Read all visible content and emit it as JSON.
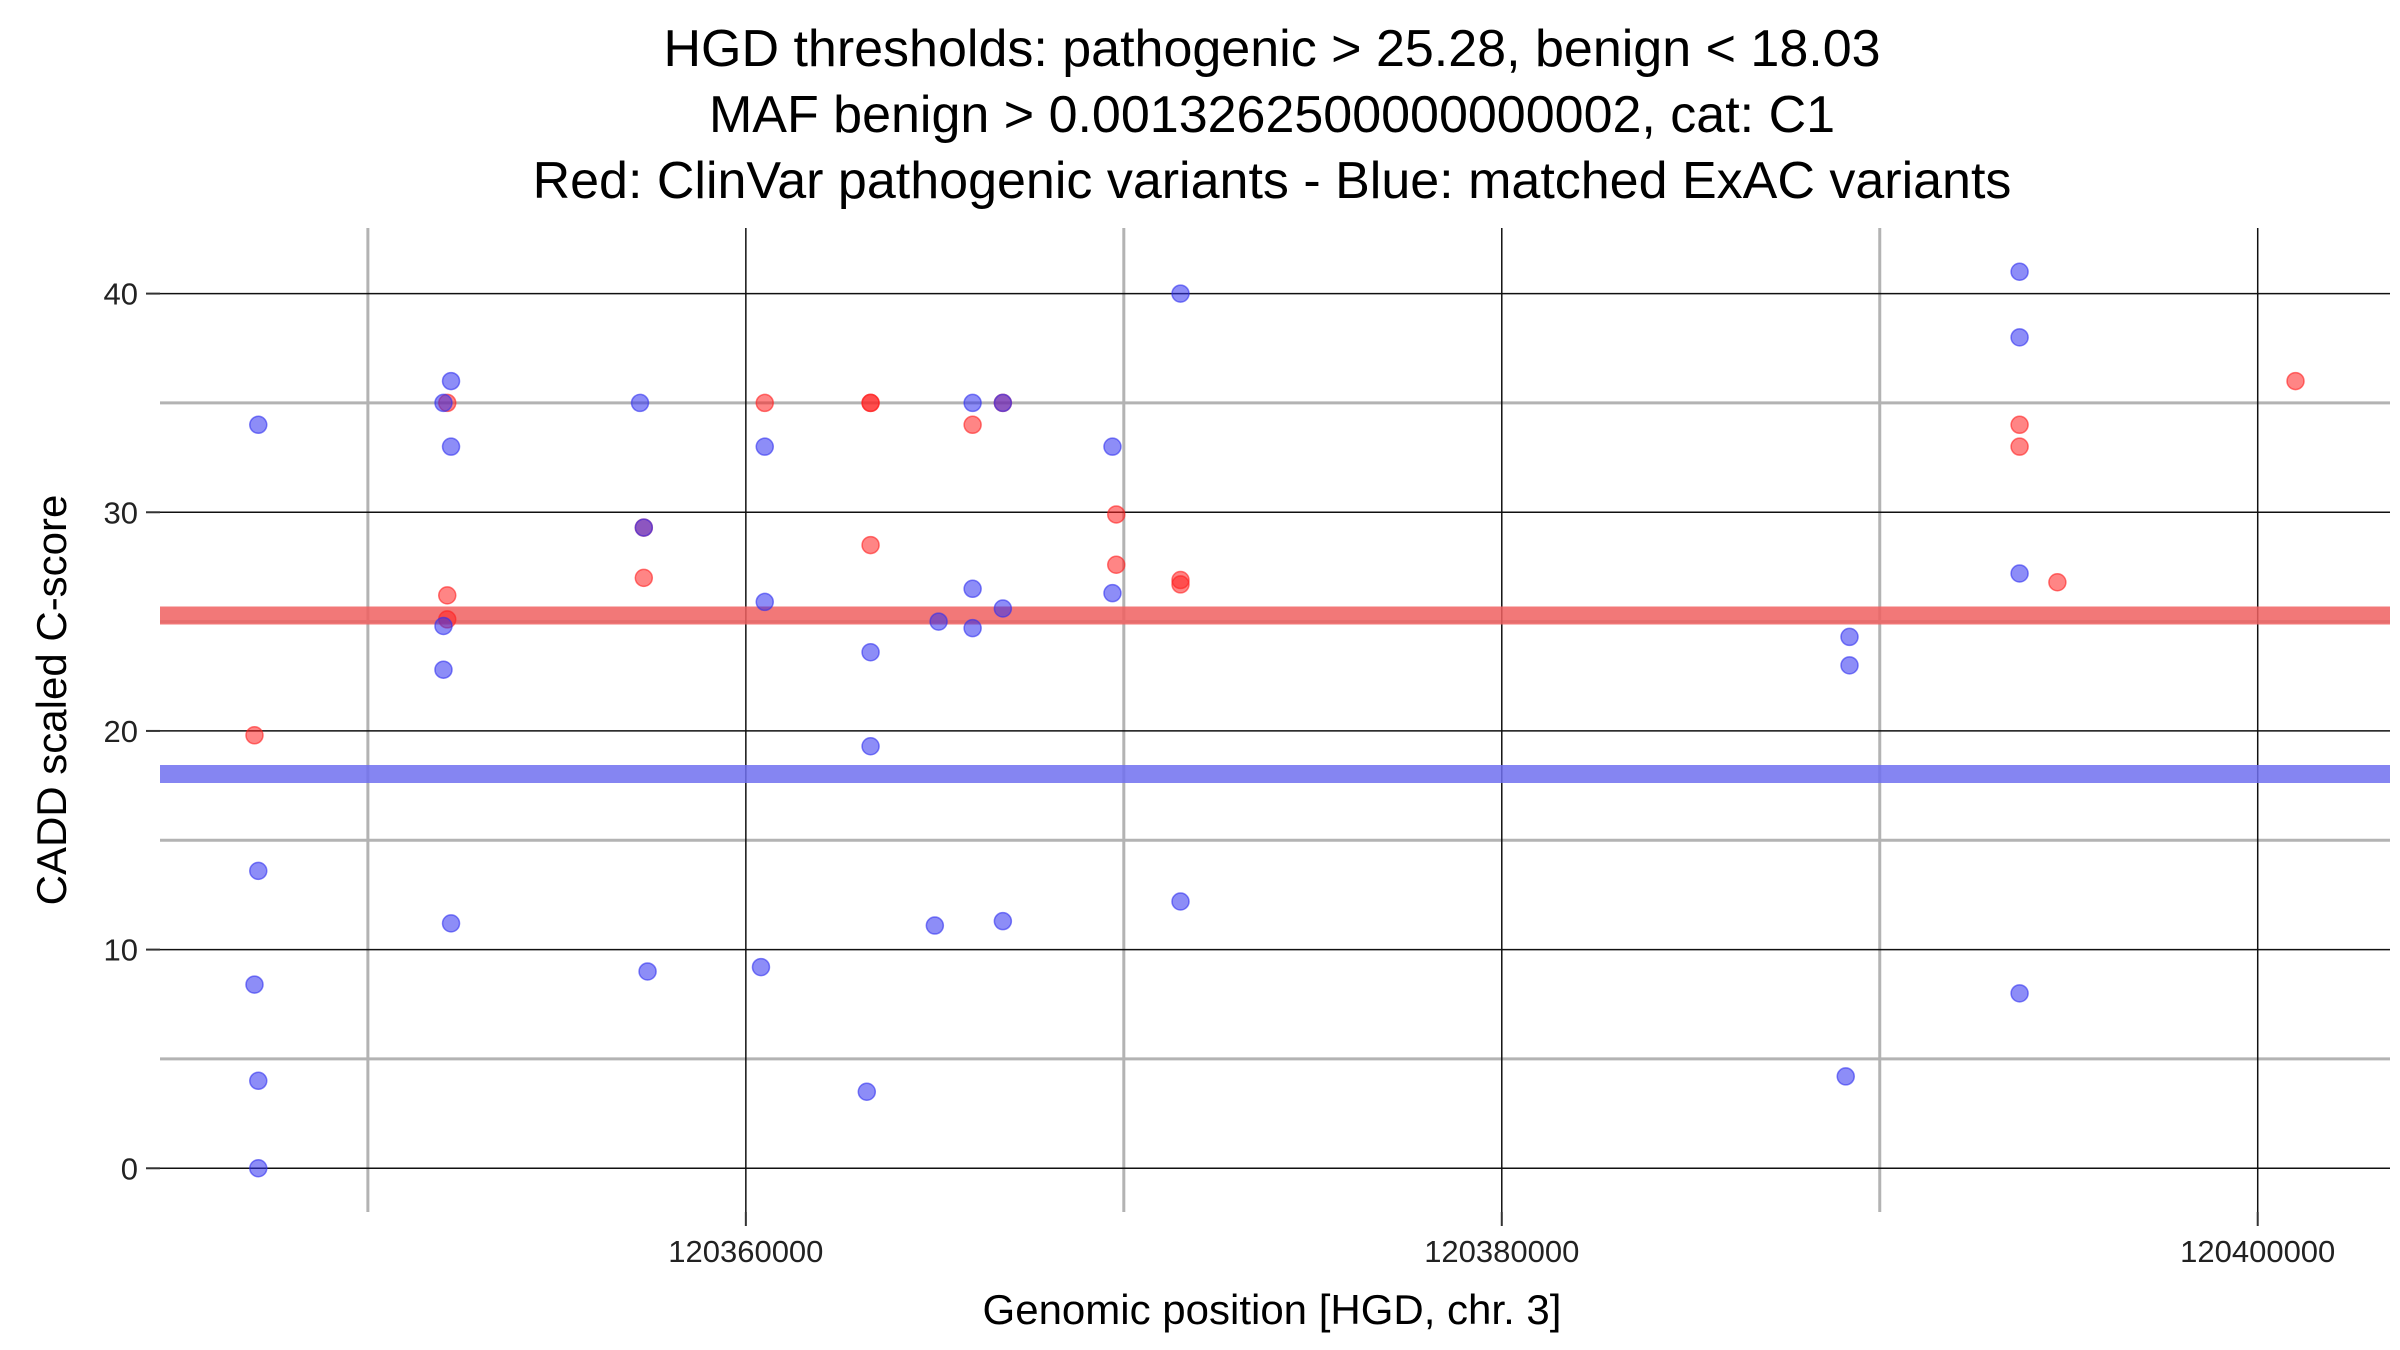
{
  "chart_data": {
    "type": "scatter",
    "title": [
      "HGD thresholds: pathogenic > 25.28, benign < 18.03",
      "MAF benign > 0.0013262500000000002, cat: C1",
      "Red: ClinVar pathogenic variants - Blue: matched ExAC variants"
    ],
    "xlabel": "Genomic position [HGD, chr. 3]",
    "ylabel": "CADD scaled C-score",
    "xlim": [
      120344500,
      120403500
    ],
    "ylim": [
      -2,
      43
    ],
    "x_ticks": [
      {
        "value": 120360000,
        "label": "120360000"
      },
      {
        "value": 120380000,
        "label": "120380000"
      },
      {
        "value": 120400000,
        "label": "120400000"
      }
    ],
    "x_minor_grid": [
      120350000,
      120370000,
      120390000
    ],
    "y_ticks": [
      {
        "value": 0,
        "label": "0"
      },
      {
        "value": 10,
        "label": "10"
      },
      {
        "value": 20,
        "label": "20"
      },
      {
        "value": 30,
        "label": "30"
      },
      {
        "value": 40,
        "label": "40"
      }
    ],
    "y_minor_grid": [
      5,
      15,
      25,
      35
    ],
    "grid": true,
    "thresholds": [
      {
        "name": "pathogenic",
        "value": 25.28,
        "color": "#f06060"
      },
      {
        "name": "benign",
        "value": 18.03,
        "color": "#7070f0"
      }
    ],
    "series": [
      {
        "color": "#ff2020",
        "points": [
          {
            "x": 120347000,
            "y": 19.8
          },
          {
            "x": 120352100,
            "y": 26.2
          },
          {
            "x": 120352100,
            "y": 25.1
          },
          {
            "x": 120352100,
            "y": 35.0
          },
          {
            "x": 120357300,
            "y": 29.3
          },
          {
            "x": 120357300,
            "y": 27.0
          },
          {
            "x": 120360500,
            "y": 35.0
          },
          {
            "x": 120363300,
            "y": 35.0
          },
          {
            "x": 120363300,
            "y": 35.0
          },
          {
            "x": 120363300,
            "y": 28.5
          },
          {
            "x": 120366000,
            "y": 34.0
          },
          {
            "x": 120366800,
            "y": 35.0
          },
          {
            "x": 120369800,
            "y": 29.9
          },
          {
            "x": 120369800,
            "y": 27.6
          },
          {
            "x": 120371500,
            "y": 26.9
          },
          {
            "x": 120371500,
            "y": 26.7
          },
          {
            "x": 120393700,
            "y": 34.0
          },
          {
            "x": 120393700,
            "y": 33.0
          },
          {
            "x": 120394700,
            "y": 26.8
          },
          {
            "x": 120401000,
            "y": 36.0
          }
        ]
      },
      {
        "color": "#3030f0",
        "points": [
          {
            "x": 120347100,
            "y": 34.0
          },
          {
            "x": 120347100,
            "y": 13.6
          },
          {
            "x": 120347000,
            "y": 8.4
          },
          {
            "x": 120347100,
            "y": 4.0
          },
          {
            "x": 120347100,
            "y": 0.0
          },
          {
            "x": 120352200,
            "y": 36.0
          },
          {
            "x": 120352000,
            "y": 35.0
          },
          {
            "x": 120352200,
            "y": 33.0
          },
          {
            "x": 120352000,
            "y": 24.8
          },
          {
            "x": 120352000,
            "y": 22.8
          },
          {
            "x": 120352200,
            "y": 11.2
          },
          {
            "x": 120357200,
            "y": 35.0
          },
          {
            "x": 120357300,
            "y": 29.3
          },
          {
            "x": 120357400,
            "y": 9.0
          },
          {
            "x": 120360500,
            "y": 33.0
          },
          {
            "x": 120360500,
            "y": 25.9
          },
          {
            "x": 120360400,
            "y": 9.2
          },
          {
            "x": 120363300,
            "y": 23.6
          },
          {
            "x": 120363300,
            "y": 19.3
          },
          {
            "x": 120363200,
            "y": 3.5
          },
          {
            "x": 120365100,
            "y": 25.0
          },
          {
            "x": 120365000,
            "y": 11.1
          },
          {
            "x": 120366000,
            "y": 35.0
          },
          {
            "x": 120366000,
            "y": 26.5
          },
          {
            "x": 120366000,
            "y": 24.7
          },
          {
            "x": 120366800,
            "y": 35.0
          },
          {
            "x": 120366800,
            "y": 25.6
          },
          {
            "x": 120366800,
            "y": 11.3
          },
          {
            "x": 120369700,
            "y": 33.0
          },
          {
            "x": 120369700,
            "y": 26.3
          },
          {
            "x": 120371500,
            "y": 40.0
          },
          {
            "x": 120371500,
            "y": 12.2
          },
          {
            "x": 120389200,
            "y": 24.3
          },
          {
            "x": 120389200,
            "y": 23.0
          },
          {
            "x": 120389100,
            "y": 4.2
          },
          {
            "x": 120393700,
            "y": 41.0
          },
          {
            "x": 120393700,
            "y": 38.0
          },
          {
            "x": 120393700,
            "y": 27.2
          },
          {
            "x": 120393700,
            "y": 8.0
          }
        ]
      }
    ]
  }
}
